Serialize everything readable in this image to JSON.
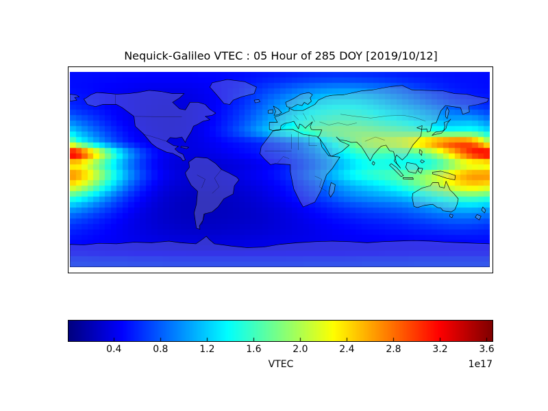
{
  "title": "Nequick-Galileo VTEC : 05 Hour of 285 DOY [2019/10/12]",
  "colors": {
    "background": "#ffffff",
    "frame": "#000000",
    "coastline": "#000000",
    "land_tint": "rgba(185,185,185,0.28)",
    "colormap_name": "jet"
  },
  "chart_data": {
    "type": "heatmap",
    "title": "Nequick-Galileo VTEC : 05 Hour of 285 DOY [2019/10/12]",
    "model": "Nequick-Galileo",
    "hour_utc": "05",
    "day_of_year": "285",
    "date": "2019/10/12",
    "projection": "equirectangular",
    "map_extent": {
      "lon_min": -180,
      "lon_max": 180,
      "lat_min": -90,
      "lat_max": 90
    },
    "colorbar": {
      "label": "VTEC",
      "scale_note": "1e17",
      "colormap": "jet",
      "orientation": "horizontal",
      "vmin": 0.01,
      "vmax": 3.65,
      "ticks": [
        0.4,
        0.8,
        1.2,
        1.6,
        2.0,
        2.4,
        2.8,
        3.2,
        3.6
      ]
    },
    "grid": {
      "unit": "1e17 el/m^2",
      "lat_start": 85,
      "lat_step": -10,
      "lon_start": -175,
      "lon_step": 10,
      "values": [
        [
          0.5,
          0.5,
          0.49,
          0.49,
          0.48,
          0.48,
          0.47,
          0.47,
          0.47,
          0.47,
          0.47,
          0.48,
          0.48,
          0.49,
          0.5,
          0.52,
          0.54,
          0.56,
          0.58,
          0.6,
          0.62,
          0.63,
          0.64,
          0.64,
          0.63,
          0.62,
          0.61,
          0.59,
          0.57,
          0.56,
          0.54,
          0.53,
          0.52,
          0.51,
          0.51,
          0.5
        ],
        [
          0.5,
          0.49,
          0.47,
          0.45,
          0.44,
          0.42,
          0.41,
          0.4,
          0.4,
          0.4,
          0.41,
          0.43,
          0.46,
          0.5,
          0.54,
          0.6,
          0.66,
          0.72,
          0.78,
          0.84,
          0.89,
          0.93,
          0.96,
          0.97,
          0.96,
          0.93,
          0.89,
          0.84,
          0.78,
          0.72,
          0.66,
          0.61,
          0.57,
          0.54,
          0.52,
          0.51
        ],
        [
          0.55,
          0.52,
          0.49,
          0.45,
          0.42,
          0.39,
          0.37,
          0.36,
          0.35,
          0.35,
          0.37,
          0.4,
          0.45,
          0.51,
          0.58,
          0.67,
          0.77,
          0.87,
          0.97,
          1.06,
          1.13,
          1.19,
          1.23,
          1.24,
          1.23,
          1.19,
          1.13,
          1.06,
          0.98,
          0.9,
          0.81,
          0.73,
          0.66,
          0.61,
          0.58,
          0.56
        ],
        [
          0.62,
          0.57,
          0.52,
          0.47,
          0.43,
          0.39,
          0.36,
          0.34,
          0.33,
          0.34,
          0.36,
          0.4,
          0.46,
          0.54,
          0.63,
          0.74,
          0.86,
          0.99,
          1.11,
          1.22,
          1.31,
          1.38,
          1.42,
          1.44,
          1.42,
          1.38,
          1.31,
          1.24,
          1.17,
          1.1,
          1.02,
          0.94,
          0.86,
          0.8,
          0.74,
          0.68
        ],
        [
          0.85,
          0.74,
          0.63,
          0.53,
          0.45,
          0.4,
          0.36,
          0.34,
          0.33,
          0.33,
          0.36,
          0.41,
          0.48,
          0.58,
          0.69,
          0.82,
          0.96,
          1.1,
          1.24,
          1.36,
          1.46,
          1.53,
          1.58,
          1.6,
          1.58,
          1.54,
          1.48,
          1.42,
          1.36,
          1.28,
          1.2,
          1.12,
          1.06,
          1.08,
          1.1,
          0.98
        ],
        [
          1.15,
          0.96,
          0.8,
          0.65,
          0.53,
          0.44,
          0.38,
          0.35,
          0.33,
          0.34,
          0.37,
          0.43,
          0.52,
          0.63,
          0.77,
          0.93,
          1.1,
          1.27,
          1.43,
          1.57,
          1.68,
          1.76,
          1.81,
          1.83,
          1.83,
          1.8,
          1.76,
          1.72,
          1.68,
          1.62,
          1.55,
          1.48,
          1.42,
          1.44,
          1.47,
          1.35
        ],
        [
          1.55,
          1.28,
          1.02,
          0.8,
          0.62,
          0.5,
          0.42,
          0.37,
          0.35,
          0.35,
          0.37,
          0.4,
          0.44,
          0.49,
          0.52,
          0.56,
          0.6,
          0.66,
          0.74,
          0.85,
          1.0,
          1.18,
          1.38,
          1.6,
          1.82,
          2.0,
          2.08,
          2.12,
          2.22,
          2.42,
          2.62,
          2.84,
          3.0,
          3.04,
          2.9,
          2.35
        ],
        [
          3.45,
          2.9,
          2.3,
          1.75,
          1.28,
          0.92,
          0.66,
          0.5,
          0.41,
          0.37,
          0.36,
          0.37,
          0.4,
          0.43,
          0.47,
          0.51,
          0.55,
          0.6,
          0.67,
          0.76,
          0.88,
          1.02,
          1.18,
          1.35,
          1.5,
          1.6,
          1.62,
          1.58,
          1.56,
          1.6,
          1.74,
          2.0,
          2.35,
          2.75,
          3.15,
          3.4
        ],
        [
          2.3,
          2.05,
          1.72,
          1.38,
          1.05,
          0.78,
          0.58,
          0.44,
          0.36,
          0.32,
          0.3,
          0.3,
          0.31,
          0.33,
          0.35,
          0.38,
          0.42,
          0.47,
          0.54,
          0.63,
          0.74,
          0.87,
          1.01,
          1.15,
          1.28,
          1.38,
          1.42,
          1.4,
          1.37,
          1.35,
          1.37,
          1.48,
          1.7,
          1.95,
          2.1,
          2.05
        ],
        [
          2.72,
          2.42,
          2.02,
          1.6,
          1.22,
          0.9,
          0.66,
          0.5,
          0.4,
          0.34,
          0.32,
          0.31,
          0.32,
          0.34,
          0.38,
          0.42,
          0.46,
          0.52,
          0.6,
          0.7,
          0.83,
          0.98,
          1.14,
          1.3,
          1.44,
          1.54,
          1.6,
          1.66,
          1.74,
          1.82,
          1.94,
          2.12,
          2.34,
          2.56,
          2.7,
          2.72
        ],
        [
          2.28,
          2.0,
          1.66,
          1.32,
          1.0,
          0.74,
          0.55,
          0.42,
          0.34,
          0.3,
          0.28,
          0.28,
          0.29,
          0.31,
          0.33,
          0.36,
          0.4,
          0.45,
          0.52,
          0.6,
          0.7,
          0.81,
          0.93,
          1.05,
          1.15,
          1.22,
          1.3,
          1.4,
          1.54,
          1.7,
          1.86,
          2.04,
          2.22,
          2.38,
          2.46,
          2.4
        ],
        [
          1.55,
          1.36,
          1.14,
          0.92,
          0.72,
          0.56,
          0.44,
          0.35,
          0.29,
          0.26,
          0.24,
          0.23,
          0.24,
          0.26,
          0.28,
          0.31,
          0.35,
          0.4,
          0.46,
          0.53,
          0.61,
          0.7,
          0.79,
          0.88,
          0.95,
          1.0,
          1.04,
          1.08,
          1.14,
          1.23,
          1.34,
          1.46,
          1.58,
          1.67,
          1.7,
          1.64
        ],
        [
          1.05,
          0.93,
          0.8,
          0.67,
          0.55,
          0.45,
          0.37,
          0.31,
          0.27,
          0.24,
          0.23,
          0.23,
          0.23,
          0.24,
          0.26,
          0.28,
          0.31,
          0.34,
          0.38,
          0.43,
          0.48,
          0.54,
          0.6,
          0.65,
          0.7,
          0.74,
          0.77,
          0.8,
          0.84,
          0.9,
          0.97,
          1.04,
          1.1,
          1.15,
          1.16,
          1.11
        ],
        [
          0.74,
          0.67,
          0.59,
          0.52,
          0.45,
          0.39,
          0.34,
          0.3,
          0.27,
          0.25,
          0.24,
          0.23,
          0.24,
          0.25,
          0.26,
          0.27,
          0.29,
          0.32,
          0.35,
          0.38,
          0.42,
          0.46,
          0.5,
          0.53,
          0.56,
          0.59,
          0.61,
          0.63,
          0.66,
          0.7,
          0.74,
          0.78,
          0.81,
          0.83,
          0.83,
          0.79
        ],
        [
          0.58,
          0.54,
          0.5,
          0.46,
          0.42,
          0.38,
          0.35,
          0.32,
          0.3,
          0.28,
          0.27,
          0.27,
          0.27,
          0.28,
          0.29,
          0.3,
          0.31,
          0.33,
          0.35,
          0.37,
          0.39,
          0.42,
          0.44,
          0.46,
          0.48,
          0.5,
          0.51,
          0.53,
          0.54,
          0.56,
          0.58,
          0.6,
          0.62,
          0.63,
          0.62,
          0.6
        ],
        [
          0.5,
          0.48,
          0.46,
          0.44,
          0.42,
          0.4,
          0.38,
          0.37,
          0.35,
          0.34,
          0.34,
          0.33,
          0.33,
          0.34,
          0.34,
          0.35,
          0.36,
          0.37,
          0.38,
          0.39,
          0.4,
          0.41,
          0.42,
          0.43,
          0.44,
          0.45,
          0.45,
          0.46,
          0.46,
          0.47,
          0.48,
          0.48,
          0.49,
          0.49,
          0.5,
          0.5
        ],
        [
          0.46,
          0.45,
          0.44,
          0.43,
          0.43,
          0.42,
          0.41,
          0.41,
          0.4,
          0.4,
          0.39,
          0.39,
          0.39,
          0.39,
          0.39,
          0.4,
          0.4,
          0.4,
          0.41,
          0.41,
          0.41,
          0.42,
          0.42,
          0.42,
          0.43,
          0.43,
          0.43,
          0.44,
          0.44,
          0.44,
          0.45,
          0.45,
          0.45,
          0.46,
          0.46,
          0.46
        ],
        [
          0.64,
          0.64,
          0.63,
          0.63,
          0.63,
          0.62,
          0.62,
          0.62,
          0.61,
          0.61,
          0.61,
          0.61,
          0.61,
          0.61,
          0.61,
          0.61,
          0.61,
          0.61,
          0.61,
          0.61,
          0.62,
          0.62,
          0.62,
          0.62,
          0.62,
          0.63,
          0.63,
          0.63,
          0.63,
          0.64,
          0.64,
          0.64,
          0.64,
          0.64,
          0.64,
          0.64
        ]
      ]
    }
  }
}
